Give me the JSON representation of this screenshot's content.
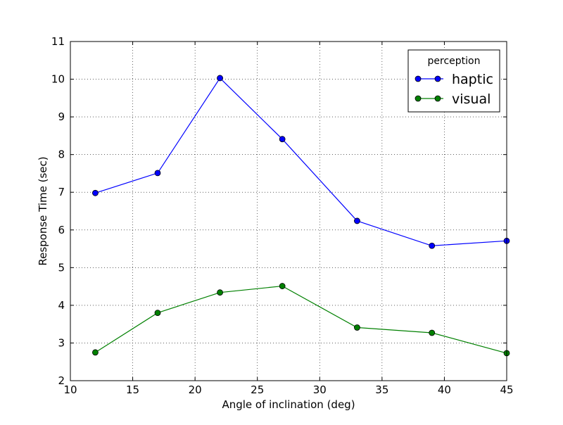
{
  "chart_data": {
    "type": "line",
    "xlabel": "Angle of inclination (deg)",
    "ylabel": "Response Time (sec)",
    "xlim": [
      10,
      45
    ],
    "ylim": [
      2,
      11
    ],
    "xticks": [
      10,
      15,
      20,
      25,
      30,
      35,
      40,
      45
    ],
    "yticks": [
      2,
      3,
      4,
      5,
      6,
      7,
      8,
      9,
      10,
      11
    ],
    "grid": true,
    "legend": {
      "title": "perception",
      "position": "top-right"
    },
    "x": [
      12,
      17,
      22,
      27,
      33,
      39,
      45
    ],
    "series": [
      {
        "name": "haptic",
        "color": "#0000ff",
        "values": [
          6.98,
          7.51,
          10.03,
          8.41,
          6.24,
          5.58,
          5.71
        ]
      },
      {
        "name": "visual",
        "color": "#008000",
        "values": [
          2.75,
          3.8,
          4.34,
          4.51,
          3.41,
          3.27,
          2.73
        ]
      }
    ]
  }
}
